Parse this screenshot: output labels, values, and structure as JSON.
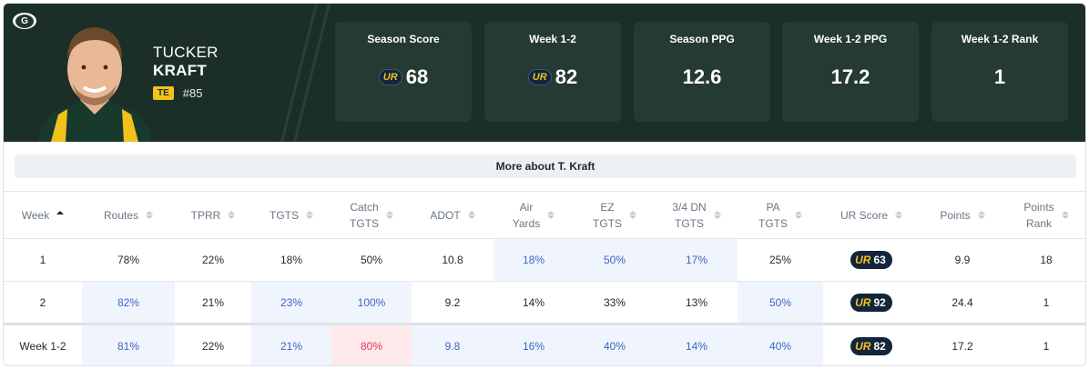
{
  "player": {
    "first_name": "TUCKER",
    "last_name": "KRAFT",
    "position": "TE",
    "jersey": "#85"
  },
  "team_logo_letter": "G",
  "ur_mark": "UR",
  "summary": [
    {
      "label": "Season Score",
      "value": "68",
      "has_ur": true
    },
    {
      "label": "Week 1-2",
      "value": "82",
      "has_ur": true
    },
    {
      "label": "Season PPG",
      "value": "12.6",
      "has_ur": false
    },
    {
      "label": "Week 1-2 PPG",
      "value": "17.2",
      "has_ur": false
    },
    {
      "label": "Week 1-2 Rank",
      "value": "1",
      "has_ur": false
    }
  ],
  "more_button": "More about T. Kraft",
  "columns": [
    {
      "lines": [
        "Week"
      ],
      "sort": "asc"
    },
    {
      "lines": [
        "Routes"
      ],
      "sort": "none"
    },
    {
      "lines": [
        "TPRR"
      ],
      "sort": "none"
    },
    {
      "lines": [
        "TGTS"
      ],
      "sort": "none"
    },
    {
      "lines": [
        "Catch",
        "TGTS"
      ],
      "sort": "none"
    },
    {
      "lines": [
        "ADOT"
      ],
      "sort": "none"
    },
    {
      "lines": [
        "Air",
        "Yards"
      ],
      "sort": "none"
    },
    {
      "lines": [
        "EZ",
        "TGTS"
      ],
      "sort": "none"
    },
    {
      "lines": [
        "3/4 DN",
        "TGTS"
      ],
      "sort": "none"
    },
    {
      "lines": [
        "PA",
        "TGTS"
      ],
      "sort": "none"
    },
    {
      "lines": [
        "UR Score"
      ],
      "sort": "none"
    },
    {
      "lines": [
        "Points"
      ],
      "sort": "none"
    },
    {
      "lines": [
        "Points",
        "Rank"
      ],
      "sort": "none"
    }
  ],
  "rows": [
    {
      "total": false,
      "cells": [
        {
          "v": "1"
        },
        {
          "v": "78%"
        },
        {
          "v": "22%"
        },
        {
          "v": "18%"
        },
        {
          "v": "50%"
        },
        {
          "v": "10.8"
        },
        {
          "v": "18%",
          "s": "hl"
        },
        {
          "v": "50%",
          "s": "hl"
        },
        {
          "v": "17%",
          "s": "hl"
        },
        {
          "v": "25%"
        },
        {
          "v": "63",
          "ur": true
        },
        {
          "v": "9.9"
        },
        {
          "v": "18"
        }
      ]
    },
    {
      "total": false,
      "cells": [
        {
          "v": "2"
        },
        {
          "v": "82%",
          "s": "hl"
        },
        {
          "v": "21%"
        },
        {
          "v": "23%",
          "s": "hl"
        },
        {
          "v": "100%",
          "s": "hl"
        },
        {
          "v": "9.2"
        },
        {
          "v": "14%"
        },
        {
          "v": "33%"
        },
        {
          "v": "13%"
        },
        {
          "v": "50%",
          "s": "hl"
        },
        {
          "v": "92",
          "ur": true
        },
        {
          "v": "24.4"
        },
        {
          "v": "1"
        }
      ]
    },
    {
      "total": true,
      "cells": [
        {
          "v": "Week 1-2"
        },
        {
          "v": "81%",
          "s": "hl"
        },
        {
          "v": "22%"
        },
        {
          "v": "21%",
          "s": "hl"
        },
        {
          "v": "80%",
          "s": "bad"
        },
        {
          "v": "9.8",
          "s": "hl"
        },
        {
          "v": "16%",
          "s": "hl"
        },
        {
          "v": "40%",
          "s": "hl"
        },
        {
          "v": "14%",
          "s": "hl"
        },
        {
          "v": "40%",
          "s": "hl"
        },
        {
          "v": "82",
          "ur": true
        },
        {
          "v": "17.2"
        },
        {
          "v": "1"
        }
      ]
    }
  ],
  "colors": {
    "header_bg": "#1b2f28",
    "accent_yellow": "#f2c21b",
    "highlight": "#3e63c5",
    "negative": "#e0394f"
  }
}
